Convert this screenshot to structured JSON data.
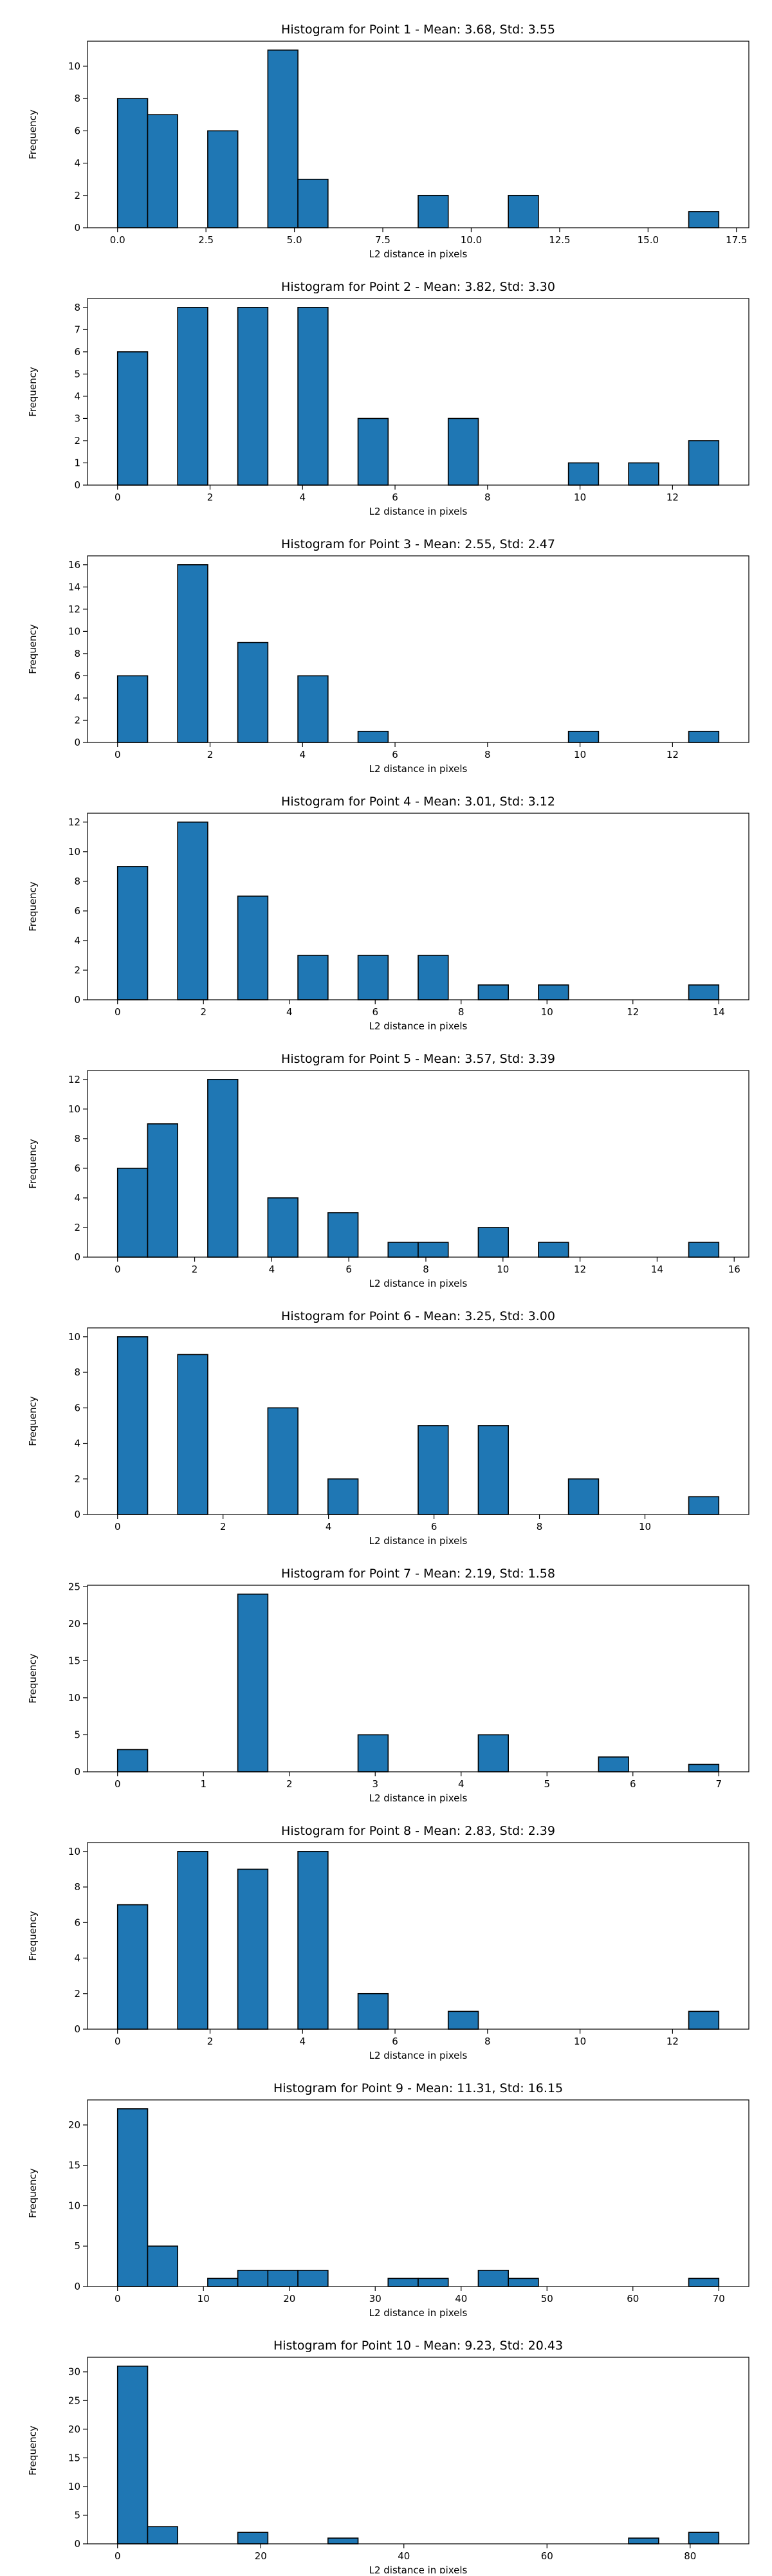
{
  "chart_data": [
    {
      "type": "bar",
      "title": "Histogram for Point 1 - Mean: 3.68, Std: 3.55",
      "xlabel": "L2 distance in pixels",
      "ylabel": "Frequency",
      "xlim": [
        -0.85,
        17.85
      ],
      "ylim": [
        0,
        11.55
      ],
      "xticks": [
        0,
        2.5,
        5,
        7.5,
        10,
        12.5,
        15,
        17.5
      ],
      "xticklabels": [
        "0.0",
        "2.5",
        "5.0",
        "7.5",
        "10.0",
        "12.5",
        "15.0",
        "17.5"
      ],
      "yticks": [
        0,
        2,
        4,
        6,
        8,
        10
      ],
      "yticklabels": [
        "0",
        "2",
        "4",
        "6",
        "8",
        "10"
      ],
      "bins": [
        {
          "x0": 0,
          "x1": 0.85,
          "value": 8
        },
        {
          "x0": 0.85,
          "x1": 1.7,
          "value": 7
        },
        {
          "x0": 2.55,
          "x1": 3.4,
          "value": 6
        },
        {
          "x0": 4.25,
          "x1": 5.1,
          "value": 11
        },
        {
          "x0": 5.1,
          "x1": 5.95,
          "value": 3
        },
        {
          "x0": 8.5,
          "x1": 9.35,
          "value": 2
        },
        {
          "x0": 11.05,
          "x1": 11.9,
          "value": 2
        },
        {
          "x0": 16.15,
          "x1": 17.0,
          "value": 1
        }
      ]
    },
    {
      "type": "bar",
      "title": "Histogram for Point 2 - Mean: 3.82, Std: 3.30",
      "xlabel": "L2 distance in pixels",
      "ylabel": "Frequency",
      "xlim": [
        -0.65,
        13.65
      ],
      "ylim": [
        0,
        8.4
      ],
      "xticks": [
        0,
        2,
        4,
        6,
        8,
        10,
        12
      ],
      "xticklabels": [
        "0",
        "2",
        "4",
        "6",
        "8",
        "10",
        "12"
      ],
      "yticks": [
        0,
        1,
        2,
        3,
        4,
        5,
        6,
        7,
        8
      ],
      "yticklabels": [
        "0",
        "1",
        "2",
        "3",
        "4",
        "5",
        "6",
        "7",
        "8"
      ],
      "bins": [
        {
          "x0": 0,
          "x1": 0.65,
          "value": 6
        },
        {
          "x0": 1.3,
          "x1": 1.95,
          "value": 8
        },
        {
          "x0": 2.6,
          "x1": 3.25,
          "value": 8
        },
        {
          "x0": 3.9,
          "x1": 4.55,
          "value": 8
        },
        {
          "x0": 5.2,
          "x1": 5.85,
          "value": 3
        },
        {
          "x0": 7.15,
          "x1": 7.8,
          "value": 3
        },
        {
          "x0": 9.75,
          "x1": 10.4,
          "value": 1
        },
        {
          "x0": 11.05,
          "x1": 11.7,
          "value": 1
        },
        {
          "x0": 12.35,
          "x1": 13.0,
          "value": 2
        }
      ]
    },
    {
      "type": "bar",
      "title": "Histogram for Point 3 - Mean: 2.55, Std: 2.47",
      "xlabel": "L2 distance in pixels",
      "ylabel": "Frequency",
      "xlim": [
        -0.65,
        13.65
      ],
      "ylim": [
        0,
        16.8
      ],
      "xticks": [
        0,
        2,
        4,
        6,
        8,
        10,
        12
      ],
      "xticklabels": [
        "0",
        "2",
        "4",
        "6",
        "8",
        "10",
        "12"
      ],
      "yticks": [
        0,
        2,
        4,
        6,
        8,
        10,
        12,
        14,
        16
      ],
      "yticklabels": [
        "0",
        "2",
        "4",
        "6",
        "8",
        "10",
        "12",
        "14",
        "16"
      ],
      "bins": [
        {
          "x0": 0,
          "x1": 0.65,
          "value": 6
        },
        {
          "x0": 1.3,
          "x1": 1.95,
          "value": 16
        },
        {
          "x0": 2.6,
          "x1": 3.25,
          "value": 9
        },
        {
          "x0": 3.9,
          "x1": 4.55,
          "value": 6
        },
        {
          "x0": 5.2,
          "x1": 5.85,
          "value": 1
        },
        {
          "x0": 9.75,
          "x1": 10.4,
          "value": 1
        },
        {
          "x0": 12.35,
          "x1": 13.0,
          "value": 1
        }
      ]
    },
    {
      "type": "bar",
      "title": "Histogram for Point 4 - Mean: 3.01, Std: 3.12",
      "xlabel": "L2 distance in pixels",
      "ylabel": "Frequency",
      "xlim": [
        -0.7,
        14.7
      ],
      "ylim": [
        0,
        12.6
      ],
      "xticks": [
        0,
        2,
        4,
        6,
        8,
        10,
        12,
        14
      ],
      "xticklabels": [
        "0",
        "2",
        "4",
        "6",
        "8",
        "10",
        "12",
        "14"
      ],
      "yticks": [
        0,
        2,
        4,
        6,
        8,
        10,
        12
      ],
      "yticklabels": [
        "0",
        "2",
        "4",
        "6",
        "8",
        "10",
        "12"
      ],
      "bins": [
        {
          "x0": 0,
          "x1": 0.7,
          "value": 9
        },
        {
          "x0": 1.4,
          "x1": 2.1,
          "value": 12
        },
        {
          "x0": 2.8,
          "x1": 3.5,
          "value": 7
        },
        {
          "x0": 4.2,
          "x1": 4.9,
          "value": 3
        },
        {
          "x0": 5.6,
          "x1": 6.3,
          "value": 3
        },
        {
          "x0": 7.0,
          "x1": 7.7,
          "value": 3
        },
        {
          "x0": 8.4,
          "x1": 9.1,
          "value": 1
        },
        {
          "x0": 9.8,
          "x1": 10.5,
          "value": 1
        },
        {
          "x0": 13.3,
          "x1": 14.0,
          "value": 1
        }
      ]
    },
    {
      "type": "bar",
      "title": "Histogram for Point 5 - Mean: 3.57, Std: 3.39",
      "xlabel": "L2 distance in pixels",
      "ylabel": "Frequency",
      "xlim": [
        -0.78,
        16.38
      ],
      "ylim": [
        0,
        12.6
      ],
      "xticks": [
        0,
        2,
        4,
        6,
        8,
        10,
        12,
        14,
        16
      ],
      "xticklabels": [
        "0",
        "2",
        "4",
        "6",
        "8",
        "10",
        "12",
        "14",
        "16"
      ],
      "yticks": [
        0,
        2,
        4,
        6,
        8,
        10,
        12
      ],
      "yticklabels": [
        "0",
        "2",
        "4",
        "6",
        "8",
        "10",
        "12"
      ],
      "bins": [
        {
          "x0": 0,
          "x1": 0.78,
          "value": 6
        },
        {
          "x0": 0.78,
          "x1": 1.56,
          "value": 9
        },
        {
          "x0": 2.34,
          "x1": 3.12,
          "value": 12
        },
        {
          "x0": 3.9,
          "x1": 4.68,
          "value": 4
        },
        {
          "x0": 5.46,
          "x1": 6.24,
          "value": 3
        },
        {
          "x0": 7.02,
          "x1": 7.8,
          "value": 1
        },
        {
          "x0": 7.8,
          "x1": 8.58,
          "value": 1
        },
        {
          "x0": 9.36,
          "x1": 10.14,
          "value": 2
        },
        {
          "x0": 10.92,
          "x1": 11.7,
          "value": 1
        },
        {
          "x0": 14.82,
          "x1": 15.6,
          "value": 1
        }
      ]
    },
    {
      "type": "bar",
      "title": "Histogram for Point 6 - Mean: 3.25, Std: 3.00",
      "xlabel": "L2 distance in pixels",
      "ylabel": "Frequency",
      "xlim": [
        -0.57,
        11.97
      ],
      "ylim": [
        0,
        10.5
      ],
      "xticks": [
        0,
        2,
        4,
        6,
        8,
        10
      ],
      "xticklabels": [
        "0",
        "2",
        "4",
        "6",
        "8",
        "10"
      ],
      "yticks": [
        0,
        2,
        4,
        6,
        8,
        10
      ],
      "yticklabels": [
        "0",
        "2",
        "4",
        "6",
        "8",
        "10"
      ],
      "bins": [
        {
          "x0": 0,
          "x1": 0.57,
          "value": 10
        },
        {
          "x0": 1.14,
          "x1": 1.71,
          "value": 9
        },
        {
          "x0": 2.85,
          "x1": 3.42,
          "value": 6
        },
        {
          "x0": 3.99,
          "x1": 4.56,
          "value": 2
        },
        {
          "x0": 5.7,
          "x1": 6.27,
          "value": 5
        },
        {
          "x0": 6.84,
          "x1": 7.41,
          "value": 5
        },
        {
          "x0": 8.55,
          "x1": 9.12,
          "value": 2
        },
        {
          "x0": 10.83,
          "x1": 11.4,
          "value": 1
        }
      ]
    },
    {
      "type": "bar",
      "title": "Histogram for Point 7 - Mean: 2.19, Std: 1.58",
      "xlabel": "L2 distance in pixels",
      "ylabel": "Frequency",
      "xlim": [
        -0.35,
        7.35
      ],
      "ylim": [
        0,
        25.2
      ],
      "xticks": [
        0,
        1,
        2,
        3,
        4,
        5,
        6,
        7
      ],
      "xticklabels": [
        "0",
        "1",
        "2",
        "3",
        "4",
        "5",
        "6",
        "7"
      ],
      "yticks": [
        0,
        5,
        10,
        15,
        20,
        25
      ],
      "yticklabels": [
        "0",
        "5",
        "10",
        "15",
        "20",
        "25"
      ],
      "bins": [
        {
          "x0": 0,
          "x1": 0.35,
          "value": 3
        },
        {
          "x0": 1.4,
          "x1": 1.75,
          "value": 24
        },
        {
          "x0": 2.8,
          "x1": 3.15,
          "value": 5
        },
        {
          "x0": 4.2,
          "x1": 4.55,
          "value": 5
        },
        {
          "x0": 5.6,
          "x1": 5.95,
          "value": 2
        },
        {
          "x0": 6.65,
          "x1": 7.0,
          "value": 1
        }
      ]
    },
    {
      "type": "bar",
      "title": "Histogram for Point 8 - Mean: 2.83, Std: 2.39",
      "xlabel": "L2 distance in pixels",
      "ylabel": "Frequency",
      "xlim": [
        -0.65,
        13.65
      ],
      "ylim": [
        0,
        10.5
      ],
      "xticks": [
        0,
        2,
        4,
        6,
        8,
        10,
        12
      ],
      "xticklabels": [
        "0",
        "2",
        "4",
        "6",
        "8",
        "10",
        "12"
      ],
      "yticks": [
        0,
        2,
        4,
        6,
        8,
        10
      ],
      "yticklabels": [
        "0",
        "2",
        "4",
        "6",
        "8",
        "10"
      ],
      "bins": [
        {
          "x0": 0,
          "x1": 0.65,
          "value": 7
        },
        {
          "x0": 1.3,
          "x1": 1.95,
          "value": 10
        },
        {
          "x0": 2.6,
          "x1": 3.25,
          "value": 9
        },
        {
          "x0": 3.9,
          "x1": 4.55,
          "value": 10
        },
        {
          "x0": 5.2,
          "x1": 5.85,
          "value": 2
        },
        {
          "x0": 7.15,
          "x1": 7.8,
          "value": 1
        },
        {
          "x0": 12.35,
          "x1": 13.0,
          "value": 1
        }
      ]
    },
    {
      "type": "bar",
      "title": "Histogram for Point 9 - Mean: 11.31, Std: 16.15",
      "xlabel": "L2 distance in pixels",
      "ylabel": "Frequency",
      "xlim": [
        -3.5,
        73.5
      ],
      "ylim": [
        0,
        23.1
      ],
      "xticks": [
        0,
        10,
        20,
        30,
        40,
        50,
        60,
        70
      ],
      "xticklabels": [
        "0",
        "10",
        "20",
        "30",
        "40",
        "50",
        "60",
        "70"
      ],
      "yticks": [
        0,
        5,
        10,
        15,
        20
      ],
      "yticklabels": [
        "0",
        "5",
        "10",
        "15",
        "20"
      ],
      "bins": [
        {
          "x0": 0,
          "x1": 3.5,
          "value": 22
        },
        {
          "x0": 3.5,
          "x1": 7.0,
          "value": 5
        },
        {
          "x0": 10.5,
          "x1": 14.0,
          "value": 1
        },
        {
          "x0": 14.0,
          "x1": 17.5,
          "value": 2
        },
        {
          "x0": 17.5,
          "x1": 21.0,
          "value": 2
        },
        {
          "x0": 21.0,
          "x1": 24.5,
          "value": 2
        },
        {
          "x0": 31.5,
          "x1": 35.0,
          "value": 1
        },
        {
          "x0": 35.0,
          "x1": 38.5,
          "value": 1
        },
        {
          "x0": 42.0,
          "x1": 45.5,
          "value": 2
        },
        {
          "x0": 45.5,
          "x1": 49.0,
          "value": 1
        },
        {
          "x0": 66.5,
          "x1": 70.0,
          "value": 1
        }
      ]
    },
    {
      "type": "bar",
      "title": "Histogram for Point 10 - Mean: 9.23, Std: 20.43",
      "xlabel": "L2 distance in pixels",
      "ylabel": "Frequency",
      "xlim": [
        -4.2,
        88.2
      ],
      "ylim": [
        0,
        32.55
      ],
      "xticks": [
        0,
        20,
        40,
        60,
        80
      ],
      "xticklabels": [
        "0",
        "20",
        "40",
        "60",
        "80"
      ],
      "yticks": [
        0,
        5,
        10,
        15,
        20,
        25,
        30
      ],
      "yticklabels": [
        "0",
        "5",
        "10",
        "15",
        "20",
        "25",
        "30"
      ],
      "bins": [
        {
          "x0": 0,
          "x1": 4.2,
          "value": 31
        },
        {
          "x0": 4.2,
          "x1": 8.4,
          "value": 3
        },
        {
          "x0": 16.8,
          "x1": 21.0,
          "value": 2
        },
        {
          "x0": 29.4,
          "x1": 33.6,
          "value": 1
        },
        {
          "x0": 71.4,
          "x1": 75.6,
          "value": 1
        },
        {
          "x0": 79.8,
          "x1": 84.0,
          "value": 2
        }
      ]
    }
  ],
  "colors": {
    "bar_fill": "#1f77b4",
    "bar_edge": "#000000"
  }
}
